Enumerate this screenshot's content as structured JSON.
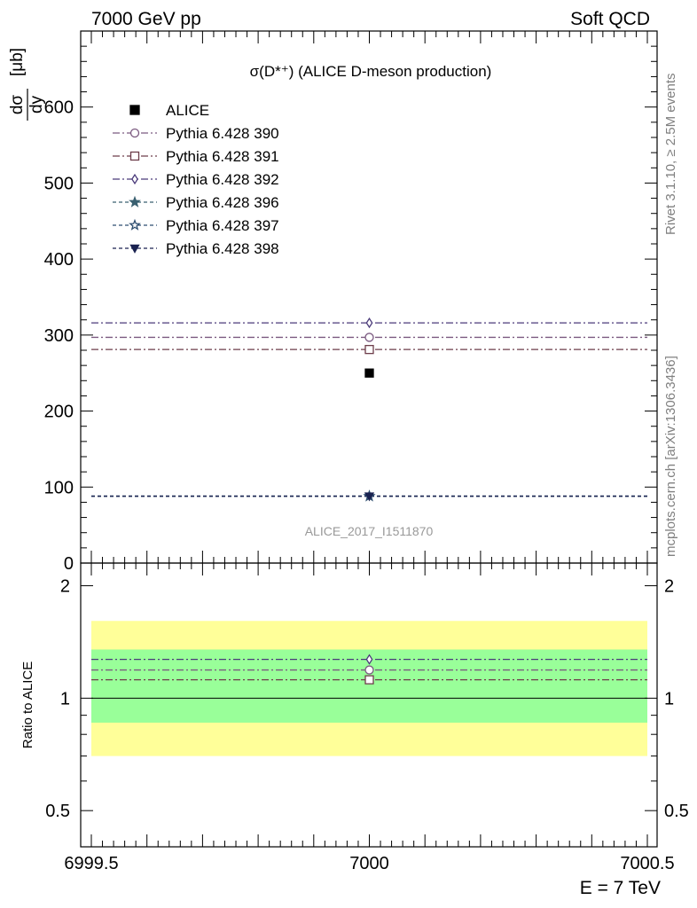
{
  "header": {
    "left": "7000 GeV pp",
    "right": "Soft QCD"
  },
  "side_labels": {
    "rivet": "Rivet 3.1.10, ≥ 2.5M events",
    "mcplots": "mcplots.cern.ch [arXiv:1306.3436]"
  },
  "chart_data": [
    {
      "type": "scatter",
      "title": "σ(D*⁺) (ALICE D-meson production)",
      "analysis_tag": "ALICE_2017_I1511870",
      "ylabel": "dσ/dy [μb]",
      "ylabel_num": "dσ",
      "ylabel_den": "dy",
      "ylabel_unit": "[μb]",
      "xlim": [
        6999.5,
        7000.5
      ],
      "ylim": [
        0,
        700
      ],
      "yticks": [
        0,
        100,
        200,
        300,
        400,
        500,
        600
      ],
      "legend_position": "top-left",
      "series": [
        {
          "name": "ALICE",
          "marker": "filled-square",
          "color": "#000000",
          "x": [
            7000
          ],
          "y": [
            250
          ]
        },
        {
          "name": "Pythia 6.428 390",
          "marker": "open-circle",
          "line": "dash-dot",
          "color": "#7b5a80",
          "x": [
            7000
          ],
          "y": [
            297
          ]
        },
        {
          "name": "Pythia 6.428 391",
          "marker": "open-square",
          "line": "dash-dot",
          "color": "#6d3d4a",
          "x": [
            7000
          ],
          "y": [
            281
          ]
        },
        {
          "name": "Pythia 6.428 392",
          "marker": "open-diamond",
          "line": "dash-dot",
          "color": "#4a3a7a",
          "x": [
            7000
          ],
          "y": [
            316
          ]
        },
        {
          "name": "Pythia 6.428 396",
          "marker": "filled-star",
          "line": "dashed",
          "color": "#3a6070",
          "x": [
            7000
          ],
          "y": [
            88
          ]
        },
        {
          "name": "Pythia 6.428 397",
          "marker": "open-star",
          "line": "dashed",
          "color": "#2e4e70",
          "x": [
            7000
          ],
          "y": [
            88
          ]
        },
        {
          "name": "Pythia 6.428 398",
          "marker": "filled-triangle-down",
          "line": "dashed",
          "color": "#1a2250",
          "x": [
            7000
          ],
          "y": [
            88
          ]
        }
      ]
    },
    {
      "type": "scatter",
      "ylabel": "Ratio to ALICE",
      "xlabel": "E = 7 TeV",
      "xlim": [
        6999.5,
        7000.5
      ],
      "xticks": [
        6999.5,
        7000,
        7000.5
      ],
      "xtick_labels": [
        "6999.5",
        "7000",
        "7000.5"
      ],
      "ylim": [
        0.4,
        2.3
      ],
      "ylog": true,
      "yticks": [
        0.5,
        1,
        2
      ],
      "ytick_labels": [
        "0.5",
        "1",
        "2"
      ],
      "bands": [
        {
          "name": "total uncertainty",
          "color": "#ffff99",
          "low": 0.7,
          "high": 1.61
        },
        {
          "name": "stat uncertainty",
          "color": "#99ff99",
          "low": 0.86,
          "high": 1.35
        }
      ],
      "series": [
        {
          "name": "Pythia 6.428 390",
          "x": [
            7000
          ],
          "y": [
            1.19
          ]
        },
        {
          "name": "Pythia 6.428 391",
          "x": [
            7000
          ],
          "y": [
            1.12
          ]
        },
        {
          "name": "Pythia 6.428 392",
          "x": [
            7000
          ],
          "y": [
            1.27
          ]
        }
      ]
    }
  ]
}
